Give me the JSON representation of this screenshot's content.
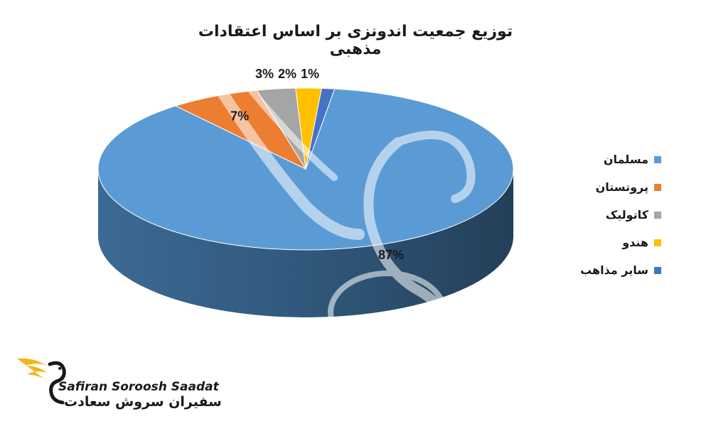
{
  "chart_data": {
    "type": "pie",
    "title": "توزیع جمعیت اندونزی بر اساس اعتقادات مذهبی",
    "categories": [
      "مسلمان",
      "پروتستان",
      "کاتولیک",
      "هندو",
      "سایر مذاهب"
    ],
    "values": [
      87,
      7,
      3,
      2,
      1
    ],
    "value_labels": [
      "87%",
      "7%",
      "3%",
      "2%",
      "1%"
    ],
    "colors": [
      "#5b9bd5",
      "#ed7d31",
      "#a5a5a5",
      "#ffc000",
      "#4472c4"
    ],
    "legend_position": "right",
    "style": "3d"
  },
  "brand": {
    "name_en": "Safiran Soroosh Saadat",
    "name_fa": "سفیران سروش سعادت"
  }
}
